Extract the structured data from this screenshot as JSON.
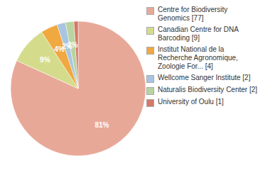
{
  "chart_data": {
    "type": "pie",
    "categories": [
      "Centre for Biodiversity\nGenomics [77]",
      "Canadian Centre for DNA\nBarcoding [9]",
      "Institut National de la\nRecherche Agronomique,\nZoologie For... [4]",
      "Wellcome Sanger Institute [2]",
      "Naturalis Biodiversity Center [2]",
      "University of Oulu [1]"
    ],
    "values": [
      81,
      9,
      4,
      2,
      2,
      1
    ],
    "value_labels": [
      "81%",
      "9%",
      "4%",
      "2%",
      "2%",
      null
    ],
    "colors": [
      "#e8a898",
      "#d4dc8c",
      "#f0a840",
      "#a8c4e0",
      "#b8d4a0",
      "#d47868"
    ],
    "data_labels": true,
    "legend": "right"
  }
}
